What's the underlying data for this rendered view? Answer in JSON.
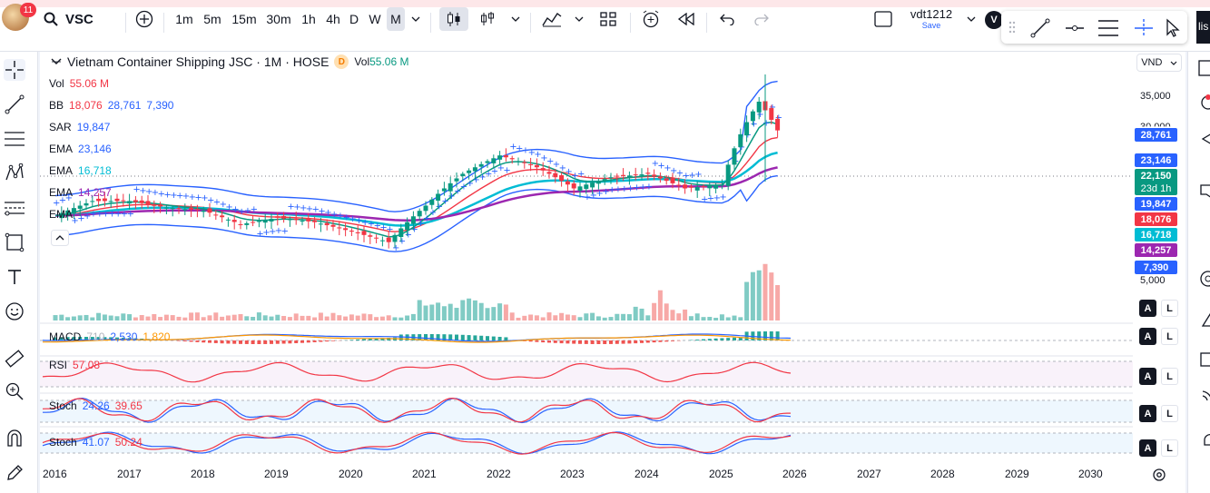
{
  "topbar": {
    "notification_count": "11",
    "symbol": "VSC",
    "timeframes": [
      "1m",
      "5m",
      "15m",
      "30m",
      "1h",
      "4h",
      "D",
      "W",
      "M"
    ],
    "active_timeframe": "M",
    "layout_name": "vdt1212",
    "layout_save": "Save",
    "account_initial": "V",
    "right_cut": "lis"
  },
  "legend": {
    "title": "Vietnam Container Shipping JSC · 1M · HOSE",
    "badge": "D",
    "vol_label": "Vol",
    "vol_value": "55.06 M",
    "indicators": [
      {
        "name": "Vol",
        "values": [
          "55.06 M"
        ]
      },
      {
        "name": "BB",
        "values": [
          "18,076",
          "28,761",
          "7,390"
        ]
      },
      {
        "name": "SAR",
        "values": [
          "19,847"
        ]
      },
      {
        "name": "EMA",
        "values": [
          "23,146"
        ]
      },
      {
        "name": "EMA",
        "values": [
          "16,718"
        ]
      },
      {
        "name": "EMA",
        "values": [
          "14,257"
        ]
      },
      {
        "name": "EMA",
        "values": []
      }
    ]
  },
  "panes": {
    "macd": {
      "name": "MACD",
      "values": [
        "710",
        "2,530",
        "1,820"
      ]
    },
    "rsi": {
      "name": "RSI",
      "values": [
        "57.08"
      ]
    },
    "stoch1": {
      "name": "Stoch",
      "values": [
        "24.26",
        "39.65"
      ]
    },
    "stoch2": {
      "name": "Stoch",
      "values": [
        "41.07",
        "50.24"
      ]
    }
  },
  "price_axis": {
    "currency": "VND",
    "ticks": [
      "35,000",
      "30,000",
      "5,000"
    ],
    "labels": [
      {
        "text": "28,761",
        "color": "#2962ff"
      },
      {
        "text": "23,146",
        "color": "#2962ff"
      },
      {
        "text": "22,150",
        "color": "#089981"
      },
      {
        "text": "23d 1h",
        "color": "#089981"
      },
      {
        "text": "19,847",
        "color": "#2962ff"
      },
      {
        "text": "18,076",
        "color": "#f23645"
      },
      {
        "text": "16,718",
        "color": "#00bcd4"
      },
      {
        "text": "14,257",
        "color": "#9c27b0"
      },
      {
        "text": "7,390",
        "color": "#2962ff"
      }
    ],
    "scale_buttons": [
      "A",
      "L"
    ]
  },
  "time_axis": {
    "years": [
      "2016",
      "2017",
      "2018",
      "2019",
      "2020",
      "2021",
      "2022",
      "2023",
      "2024",
      "2025",
      "2026",
      "2027",
      "2028",
      "2029",
      "2030"
    ],
    "highlighted": "2026"
  },
  "chart_data": {
    "type": "candlestick",
    "title": "Vietnam Container Shipping JSC · 1M · HOSE",
    "x_range": [
      "2016",
      "2030"
    ],
    "price_ylim": [
      0,
      40000
    ],
    "close_series": [
      {
        "x": "2016-01",
        "close": 9000
      },
      {
        "x": "2016-07",
        "close": 10500
      },
      {
        "x": "2017-01",
        "close": 10500
      },
      {
        "x": "2017-07",
        "close": 9800
      },
      {
        "x": "2018-01",
        "close": 9500
      },
      {
        "x": "2018-07",
        "close": 8200
      },
      {
        "x": "2019-01",
        "close": 8800
      },
      {
        "x": "2019-07",
        "close": 8400
      },
      {
        "x": "2020-01",
        "close": 7600
      },
      {
        "x": "2020-07",
        "close": 6800
      },
      {
        "x": "2021-01",
        "close": 10000
      },
      {
        "x": "2021-07",
        "close": 14000
      },
      {
        "x": "2022-01",
        "close": 17000
      },
      {
        "x": "2022-07",
        "close": 15000
      },
      {
        "x": "2023-01",
        "close": 12000
      },
      {
        "x": "2023-07",
        "close": 13500
      },
      {
        "x": "2024-01",
        "close": 14000
      },
      {
        "x": "2024-07",
        "close": 12000
      },
      {
        "x": "2025-01",
        "close": 12500
      },
      {
        "x": "2025-07",
        "close": 30000
      },
      {
        "x": "2025-10",
        "close": 22150
      }
    ]
  }
}
